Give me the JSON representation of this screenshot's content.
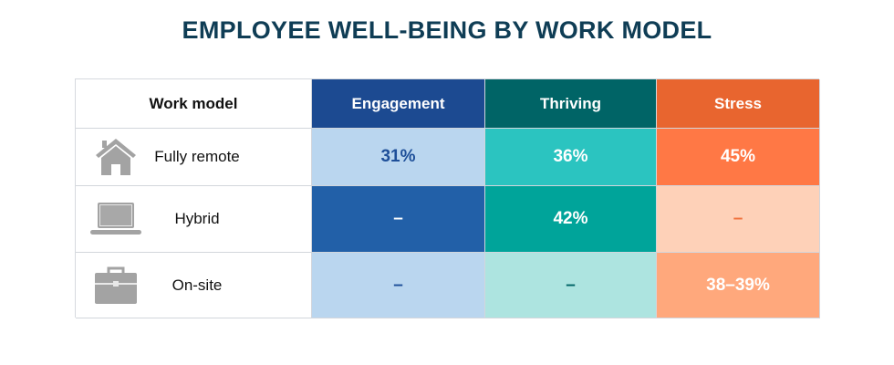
{
  "chart_data": {
    "type": "table",
    "title": "EMPLOYEE WELL-BEING BY WORK MODEL",
    "columns": [
      "Work model",
      "Engagement",
      "Thriving",
      "Stress"
    ],
    "rows": [
      {
        "model": "Fully remote",
        "icon": "house-icon",
        "values": [
          "31%",
          "36%",
          "45%"
        ]
      },
      {
        "model": "Hybrid",
        "icon": "laptop-icon",
        "values": [
          "–",
          "42%",
          "–"
        ]
      },
      {
        "model": "On-site",
        "icon": "briefcase-icon",
        "values": [
          "–",
          "–",
          "38–39%"
        ]
      }
    ]
  },
  "colors": {
    "title": "#0f3d55",
    "engagement_header": "#1c4a91",
    "thriving_header": "#006466",
    "stress_header": "#e8652f",
    "cells": [
      [
        {
          "bg": "#bad6ef",
          "fg": "#1e4f99"
        },
        {
          "bg": "#2bc4c0",
          "fg": "#ffffff"
        },
        {
          "bg": "#ff7845",
          "fg": "#ffffff"
        }
      ],
      [
        {
          "bg": "#2260a8",
          "fg": "#ffffff"
        },
        {
          "bg": "#00a49a",
          "fg": "#ffffff"
        },
        {
          "bg": "#fed1b8",
          "fg": "#f0723e"
        }
      ],
      [
        {
          "bg": "#bad6ef",
          "fg": "#1e4f99"
        },
        {
          "bg": "#ade4e0",
          "fg": "#006466"
        },
        {
          "bg": "#ffa87c",
          "fg": "#ffffff"
        }
      ]
    ],
    "icon": "#a3a3a3"
  }
}
